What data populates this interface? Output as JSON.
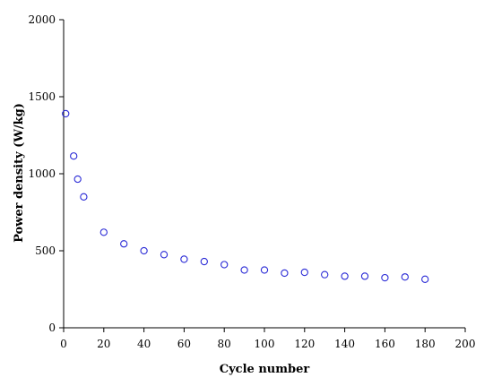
{
  "chart_data": {
    "type": "scatter",
    "title": "",
    "xlabel": "Cycle number",
    "ylabel": "Power density (W/kg)",
    "xlim": [
      0,
      200
    ],
    "ylim": [
      0,
      2000
    ],
    "xticks": [
      0,
      20,
      40,
      60,
      80,
      100,
      120,
      140,
      160,
      180,
      200
    ],
    "yticks": [
      0,
      500,
      1000,
      1500,
      2000
    ],
    "grid": false,
    "legend": "none",
    "marker": "open-circle",
    "colors": {
      "marker": "#2b2bd6",
      "axis": "#000000"
    },
    "series": [
      {
        "x": [
          1,
          5,
          7,
          10,
          20,
          30,
          40,
          50,
          60,
          70,
          80,
          90,
          100,
          110,
          120,
          130,
          140,
          150,
          160,
          170,
          180
        ],
        "y": [
          1390,
          1115,
          965,
          850,
          620,
          545,
          500,
          475,
          445,
          430,
          410,
          375,
          375,
          355,
          360,
          345,
          335,
          335,
          325,
          330,
          315
        ]
      }
    ]
  }
}
